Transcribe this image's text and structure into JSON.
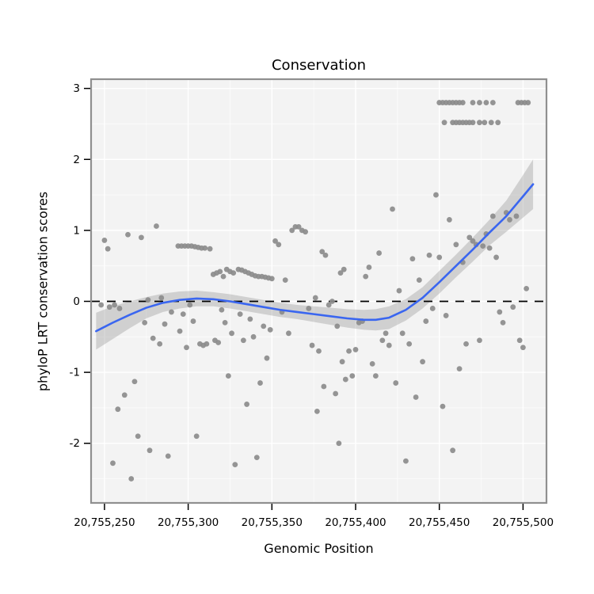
{
  "chart_data": {
    "type": "scatter",
    "title": "Conservation",
    "xlabel": "Genomic Position",
    "ylabel": "phyloP LRT conservation scores",
    "legend": "none",
    "grid": "on",
    "x_range": [
      20755242,
      20755514
    ],
    "y_range": [
      -2.84,
      3.13
    ],
    "zero_line_y": 0,
    "x_ticks": [
      {
        "v": 20755250,
        "label": "20,755,250"
      },
      {
        "v": 20755300,
        "label": "20,755,300"
      },
      {
        "v": 20755350,
        "label": "20,755,350"
      },
      {
        "v": 20755400,
        "label": "20,755,400"
      },
      {
        "v": 20755450,
        "label": "20,755,450"
      },
      {
        "v": 20755500,
        "label": "20,755,500"
      }
    ],
    "y_ticks": [
      {
        "v": -2,
        "label": "-2"
      },
      {
        "v": -1,
        "label": "-1"
      },
      {
        "v": 0,
        "label": "0"
      },
      {
        "v": 1,
        "label": "1"
      },
      {
        "v": 2,
        "label": "2"
      },
      {
        "v": 3,
        "label": "3"
      }
    ],
    "x_minor": [
      20755275,
      20755325,
      20755375,
      20755425,
      20755475
    ],
    "y_minor": [
      -2.5,
      -1.5,
      -0.5,
      0.5,
      1.5,
      2.5
    ],
    "colors": {
      "point": "#8c8c8c",
      "smooth": "#3a66f0",
      "band": "#989898",
      "panel": "#f3f3f3",
      "grid": "#ffffff",
      "border": "#8f8f8f",
      "dashed": "#000000",
      "tick": "#000000"
    },
    "points": [
      [
        20755248,
        -0.05
      ],
      [
        20755250,
        0.86
      ],
      [
        20755252,
        0.74
      ],
      [
        20755253,
        -0.08
      ],
      [
        20755255,
        -2.28
      ],
      [
        20755256,
        -0.05
      ],
      [
        20755258,
        -1.52
      ],
      [
        20755259,
        -0.1
      ],
      [
        20755262,
        -1.32
      ],
      [
        20755264,
        0.94
      ],
      [
        20755266,
        -2.5
      ],
      [
        20755268,
        -1.13
      ],
      [
        20755270,
        -1.9
      ],
      [
        20755272,
        0.9
      ],
      [
        20755274,
        -0.3
      ],
      [
        20755276,
        0.02
      ],
      [
        20755277,
        -2.1
      ],
      [
        20755279,
        -0.52
      ],
      [
        20755281,
        1.06
      ],
      [
        20755283,
        -0.6
      ],
      [
        20755284,
        0.05
      ],
      [
        20755286,
        -0.32
      ],
      [
        20755288,
        -2.18
      ],
      [
        20755290,
        -0.15
      ],
      [
        20755294,
        0.78
      ],
      [
        20755296,
        0.78
      ],
      [
        20755298,
        0.78
      ],
      [
        20755300,
        0.78
      ],
      [
        20755302,
        0.78
      ],
      [
        20755304,
        0.77
      ],
      [
        20755306,
        0.76
      ],
      [
        20755308,
        0.75
      ],
      [
        20755310,
        0.75
      ],
      [
        20755313,
        0.74
      ],
      [
        20755295,
        -0.42
      ],
      [
        20755297,
        -0.18
      ],
      [
        20755299,
        -0.65
      ],
      [
        20755301,
        -0.05
      ],
      [
        20755303,
        -0.28
      ],
      [
        20755305,
        -1.9
      ],
      [
        20755307,
        -0.6
      ],
      [
        20755309,
        -0.62
      ],
      [
        20755311,
        -0.6
      ],
      [
        20755315,
        0.38
      ],
      [
        20755317,
        0.4
      ],
      [
        20755319,
        0.42
      ],
      [
        20755321,
        0.35
      ],
      [
        20755323,
        0.45
      ],
      [
        20755325,
        0.42
      ],
      [
        20755327,
        0.4
      ],
      [
        20755330,
        0.45
      ],
      [
        20755332,
        0.44
      ],
      [
        20755334,
        0.42
      ],
      [
        20755336,
        0.4
      ],
      [
        20755338,
        0.38
      ],
      [
        20755340,
        0.36
      ],
      [
        20755342,
        0.35
      ],
      [
        20755344,
        0.35
      ],
      [
        20755346,
        0.34
      ],
      [
        20755348,
        0.33
      ],
      [
        20755350,
        0.32
      ],
      [
        20755316,
        -0.55
      ],
      [
        20755318,
        -0.58
      ],
      [
        20755320,
        -0.12
      ],
      [
        20755322,
        -0.3
      ],
      [
        20755324,
        -1.05
      ],
      [
        20755326,
        -0.45
      ],
      [
        20755328,
        -2.3
      ],
      [
        20755331,
        -0.18
      ],
      [
        20755333,
        -0.55
      ],
      [
        20755335,
        -1.45
      ],
      [
        20755337,
        -0.25
      ],
      [
        20755339,
        -0.5
      ],
      [
        20755341,
        -2.2
      ],
      [
        20755343,
        -1.15
      ],
      [
        20755345,
        -0.35
      ],
      [
        20755347,
        -0.8
      ],
      [
        20755349,
        -0.4
      ],
      [
        20755352,
        0.85
      ],
      [
        20755354,
        0.8
      ],
      [
        20755356,
        -0.15
      ],
      [
        20755358,
        0.3
      ],
      [
        20755360,
        -0.45
      ],
      [
        20755362,
        1.0
      ],
      [
        20755364,
        1.05
      ],
      [
        20755366,
        1.05
      ],
      [
        20755368,
        1.0
      ],
      [
        20755370,
        0.98
      ],
      [
        20755372,
        -0.1
      ],
      [
        20755374,
        -0.62
      ],
      [
        20755376,
        0.05
      ],
      [
        20755378,
        -0.7
      ],
      [
        20755380,
        0.7
      ],
      [
        20755382,
        0.65
      ],
      [
        20755384,
        -0.05
      ],
      [
        20755386,
        0.0
      ],
      [
        20755388,
        -1.3
      ],
      [
        20755390,
        -2.0
      ],
      [
        20755392,
        -0.85
      ],
      [
        20755394,
        -1.1
      ],
      [
        20755396,
        -0.7
      ],
      [
        20755398,
        -1.05
      ],
      [
        20755400,
        -0.68
      ],
      [
        20755377,
        -1.55
      ],
      [
        20755381,
        -1.2
      ],
      [
        20755389,
        -0.35
      ],
      [
        20755391,
        0.4
      ],
      [
        20755393,
        0.45
      ],
      [
        20755402,
        -0.3
      ],
      [
        20755404,
        -0.28
      ],
      [
        20755406,
        0.35
      ],
      [
        20755408,
        0.48
      ],
      [
        20755410,
        -0.88
      ],
      [
        20755412,
        -1.05
      ],
      [
        20755414,
        0.68
      ],
      [
        20755416,
        -0.55
      ],
      [
        20755418,
        -0.45
      ],
      [
        20755420,
        -0.62
      ],
      [
        20755422,
        1.3
      ],
      [
        20755424,
        -1.15
      ],
      [
        20755426,
        0.15
      ],
      [
        20755428,
        -0.45
      ],
      [
        20755430,
        -2.25
      ],
      [
        20755432,
        -0.6
      ],
      [
        20755434,
        0.6
      ],
      [
        20755436,
        -1.35
      ],
      [
        20755438,
        0.3
      ],
      [
        20755440,
        -0.85
      ],
      [
        20755442,
        -0.28
      ],
      [
        20755444,
        0.65
      ],
      [
        20755446,
        -0.1
      ],
      [
        20755448,
        1.5
      ],
      [
        20755450,
        0.62
      ],
      [
        20755452,
        -1.48
      ],
      [
        20755454,
        -0.2
      ],
      [
        20755456,
        1.15
      ],
      [
        20755458,
        -2.1
      ],
      [
        20755460,
        0.8
      ],
      [
        20755462,
        -0.95
      ],
      [
        20755464,
        0.55
      ],
      [
        20755466,
        -0.6
      ],
      [
        20755468,
        0.9
      ],
      [
        20755470,
        0.85
      ],
      [
        20755472,
        0.8
      ],
      [
        20755474,
        -0.55
      ],
      [
        20755476,
        0.78
      ],
      [
        20755478,
        0.95
      ],
      [
        20755480,
        0.75
      ],
      [
        20755482,
        1.2
      ],
      [
        20755484,
        0.62
      ],
      [
        20755486,
        -0.15
      ],
      [
        20755488,
        -0.3
      ],
      [
        20755490,
        1.25
      ],
      [
        20755492,
        1.15
      ],
      [
        20755494,
        -0.08
      ],
      [
        20755496,
        1.2
      ],
      [
        20755498,
        -0.55
      ],
      [
        20755500,
        -0.65
      ],
      [
        20755502,
        0.18
      ],
      [
        20755450,
        2.8
      ],
      [
        20755452,
        2.8
      ],
      [
        20755454,
        2.8
      ],
      [
        20755456,
        2.8
      ],
      [
        20755458,
        2.8
      ],
      [
        20755460,
        2.8
      ],
      [
        20755462,
        2.8
      ],
      [
        20755464,
        2.8
      ],
      [
        20755470,
        2.8
      ],
      [
        20755474,
        2.8
      ],
      [
        20755478,
        2.8
      ],
      [
        20755482,
        2.8
      ],
      [
        20755497,
        2.8
      ],
      [
        20755499,
        2.8
      ],
      [
        20755501,
        2.8
      ],
      [
        20755503,
        2.8
      ],
      [
        20755453,
        2.52
      ],
      [
        20755458,
        2.52
      ],
      [
        20755460,
        2.52
      ],
      [
        20755462,
        2.52
      ],
      [
        20755464,
        2.52
      ],
      [
        20755466,
        2.52
      ],
      [
        20755468,
        2.52
      ],
      [
        20755470,
        2.52
      ],
      [
        20755474,
        2.52
      ],
      [
        20755477,
        2.52
      ],
      [
        20755481,
        2.52
      ],
      [
        20755485,
        2.52
      ]
    ],
    "smooth": {
      "x": [
        20755245,
        20755255,
        20755265,
        20755275,
        20755285,
        20755295,
        20755305,
        20755315,
        20755325,
        20755335,
        20755345,
        20755355,
        20755365,
        20755375,
        20755385,
        20755395,
        20755405,
        20755412,
        20755420,
        20755430,
        20755440,
        20755450,
        20755460,
        20755470,
        20755480,
        20755490,
        20755500,
        20755506
      ],
      "y": [
        -0.42,
        -0.3,
        -0.19,
        -0.09,
        -0.02,
        0.02,
        0.04,
        0.03,
        0.0,
        -0.04,
        -0.08,
        -0.12,
        -0.15,
        -0.18,
        -0.21,
        -0.24,
        -0.26,
        -0.26,
        -0.23,
        -0.12,
        0.05,
        0.27,
        0.5,
        0.73,
        0.97,
        1.2,
        1.48,
        1.65
      ],
      "upper": [
        -0.16,
        -0.07,
        0.0,
        0.06,
        0.11,
        0.14,
        0.15,
        0.13,
        0.1,
        0.06,
        0.02,
        -0.02,
        -0.05,
        -0.07,
        -0.09,
        -0.11,
        -0.12,
        -0.11,
        -0.07,
        0.03,
        0.2,
        0.43,
        0.66,
        0.9,
        1.15,
        1.42,
        1.78,
        2.0
      ],
      "lower": [
        -0.68,
        -0.53,
        -0.38,
        -0.24,
        -0.15,
        -0.1,
        -0.07,
        -0.07,
        -0.1,
        -0.14,
        -0.18,
        -0.22,
        -0.25,
        -0.29,
        -0.33,
        -0.37,
        -0.4,
        -0.41,
        -0.39,
        -0.27,
        -0.1,
        0.11,
        0.34,
        0.56,
        0.79,
        0.98,
        1.18,
        1.3
      ]
    }
  }
}
